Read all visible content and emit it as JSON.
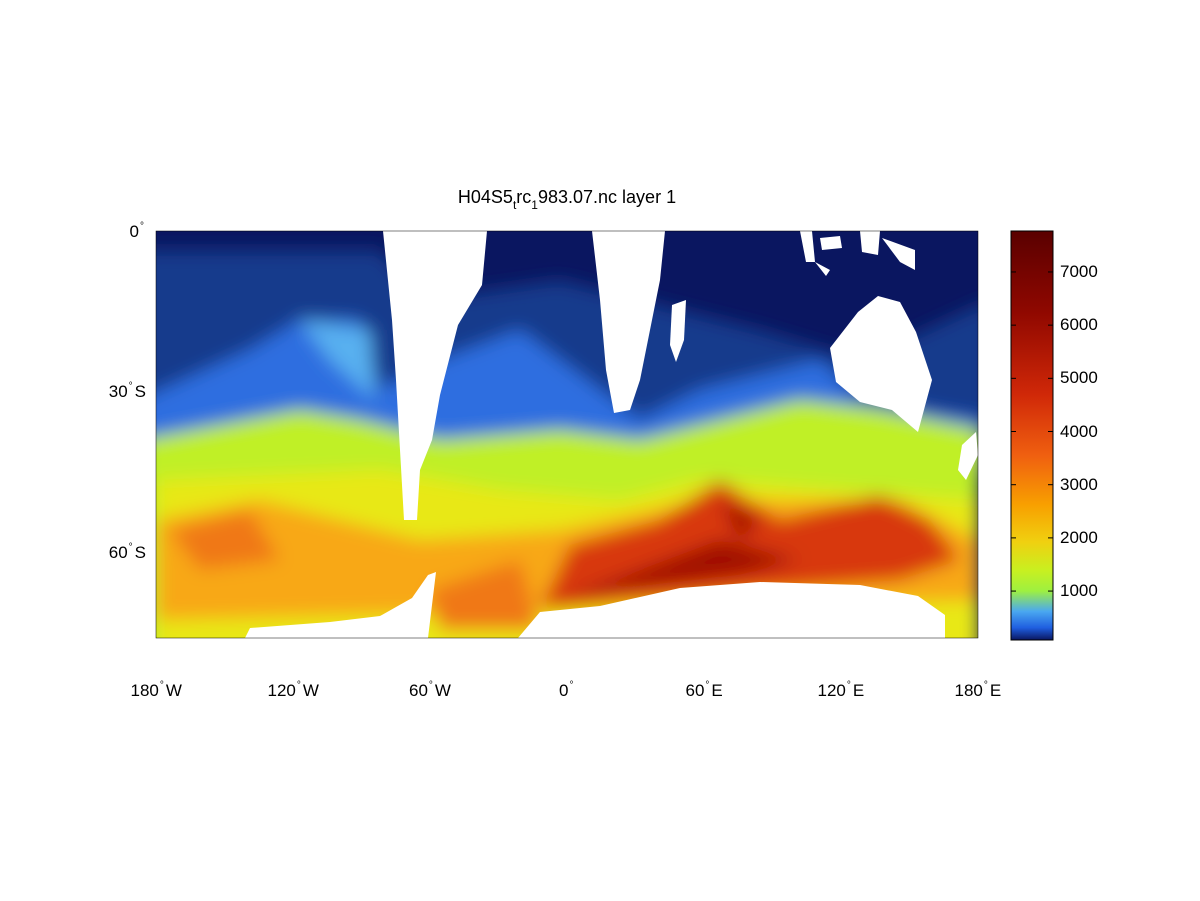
{
  "title": {
    "part1": "H04S5",
    "sub1": "t",
    "part2": "rc",
    "sub2": "1",
    "part3": "983.07.nc layer 1"
  },
  "chart_data": {
    "type": "heatmap",
    "projection": "equirectangular map",
    "region": "Southern Hemisphere ocean, 0° to ~76° S, 180° W to 180° E",
    "x_ticks": [
      {
        "deg": "180",
        "hemi": "W"
      },
      {
        "deg": "120",
        "hemi": "W"
      },
      {
        "deg": "60",
        "hemi": "W"
      },
      {
        "deg": "0",
        "hemi": ""
      },
      {
        "deg": "60",
        "hemi": "E"
      },
      {
        "deg": "120",
        "hemi": "E"
      },
      {
        "deg": "180",
        "hemi": "E"
      }
    ],
    "y_ticks": [
      {
        "deg": "0",
        "hemi": ""
      },
      {
        "deg": "30",
        "hemi": "S"
      },
      {
        "deg": "60",
        "hemi": "S"
      }
    ],
    "colorbar": {
      "ticks": [
        "1000",
        "2000",
        "3000",
        "4000",
        "5000",
        "6000",
        "7000"
      ],
      "range": [
        80,
        7770
      ],
      "colormap": [
        "#0a1660",
        "#1f5fe0",
        "#4aa8f0",
        "#b8f520",
        "#f0e010",
        "#f5a010",
        "#f06010",
        "#d02005",
        "#900800",
        "#5a0000"
      ]
    },
    "land_color": "#ffffff"
  }
}
